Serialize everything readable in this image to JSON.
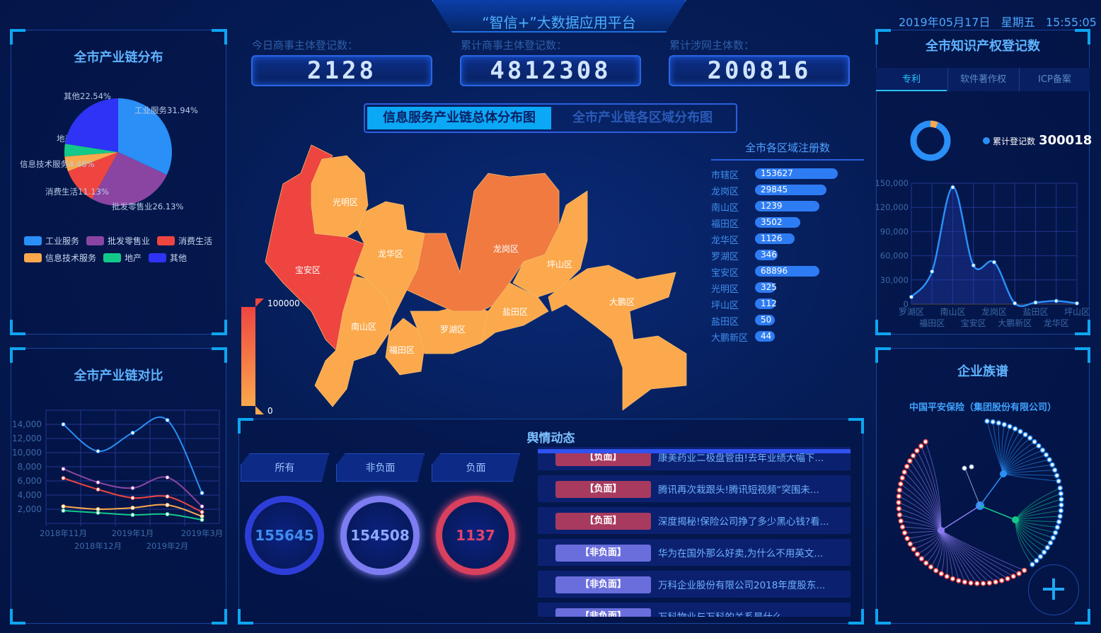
{
  "header": {
    "title": "“智信+”大数据应用平台",
    "date": "2019年05月17日",
    "weekday": "星期五",
    "time": "15:55:05"
  },
  "stats": [
    {
      "label": "今日商事主体登记数：",
      "value": "2128"
    },
    {
      "label": "累计商事主体登记数：",
      "value": "4812308"
    },
    {
      "label": "累计涉网主体数：",
      "value": "200816"
    }
  ],
  "map_tabs": [
    {
      "label": "信息服务产业链总体分布图",
      "active": true
    },
    {
      "label": "全市产业链各区域分布图",
      "active": false
    }
  ],
  "map": {
    "legend_max": "100000",
    "legend_min": "0",
    "districts": [
      "宝安区",
      "光明区",
      "龙华区",
      "南山区",
      "福田区",
      "罗湖区",
      "龙岗区",
      "盐田区",
      "坪山区",
      "大鹏区"
    ],
    "colors": {
      "high": "#ee4540",
      "mid": "#f07a40",
      "low": "#fba94c"
    }
  },
  "region_list": {
    "title": "全市各区域注册数",
    "items": [
      {
        "name": "市辖区",
        "value": "153627",
        "pct": 1.0
      },
      {
        "name": "龙岗区",
        "value": "29845",
        "pct": 0.86
      },
      {
        "name": "南山区",
        "value": "1239",
        "pct": 0.78
      },
      {
        "name": "福田区",
        "value": "3502",
        "pct": 0.55
      },
      {
        "name": "龙华区",
        "value": "1126",
        "pct": 0.48
      },
      {
        "name": "罗湖区",
        "value": "346",
        "pct": 0.27
      },
      {
        "name": "宝安区",
        "value": "68896",
        "pct": 0.78
      },
      {
        "name": "光明区",
        "value": "325",
        "pct": 0.25
      },
      {
        "name": "坪山区",
        "value": "112",
        "pct": 0.25
      },
      {
        "name": "盐田区",
        "value": "50",
        "pct": 0.2
      },
      {
        "name": "大鹏新区",
        "value": "44",
        "pct": 0.2
      }
    ]
  },
  "left_top": {
    "title": "全市产业链分布",
    "chart_data": {
      "type": "pie",
      "slices": [
        {
          "name": "工业服务",
          "value": 31.94,
          "label": "工业服务31.94%",
          "color": "#2a8ff7"
        },
        {
          "name": "批发零售业",
          "value": 26.13,
          "label": "批发零售业26.13%",
          "color": "#8a45a3"
        },
        {
          "name": "消费生活",
          "value": 11.13,
          "label": "消费生活11.13%",
          "color": "#ee4540"
        },
        {
          "name": "信息技术服务",
          "value": 4.46,
          "label": "信息技术服务4.46%",
          "color": "#fba94c"
        },
        {
          "name": "地产",
          "value": 3.8,
          "label": "地产3.8%",
          "color": "#13c98a"
        },
        {
          "name": "其他",
          "value": 22.54,
          "label": "其他22.54%",
          "color": "#2e33f5"
        }
      ],
      "legend": "bottom"
    }
  },
  "left_bottom": {
    "title": "全市产业链对比",
    "chart_data": {
      "type": "line",
      "categories": [
        "2018年11月",
        "2018年12月",
        "2019年1月",
        "2019年2月",
        "2019年3月"
      ],
      "ylim": [
        0,
        16000
      ],
      "yticks": [
        "2,000",
        "4,000",
        "6,000",
        "8,000",
        "10,000",
        "12,000",
        "14,000"
      ],
      "series": [
        {
          "name": "工业服务",
          "color": "#2a8ff7",
          "values": [
            14000,
            10200,
            12800,
            14600,
            4300
          ]
        },
        {
          "name": "批发零售业",
          "color": "#8a45a3",
          "values": [
            7700,
            5800,
            5000,
            6500,
            2400
          ]
        },
        {
          "name": "消费生活",
          "color": "#ee4540",
          "values": [
            6400,
            4800,
            3600,
            3800,
            1600
          ]
        },
        {
          "name": "信息技术服务",
          "color": "#fba94c",
          "values": [
            2400,
            2000,
            2200,
            2600,
            1000
          ]
        },
        {
          "name": "地产",
          "color": "#13c98a",
          "values": [
            1800,
            1500,
            1200,
            1300,
            500
          ]
        }
      ]
    }
  },
  "right_top": {
    "title": "全市知识产权登记数",
    "tabs": [
      {
        "label": "专利",
        "active": true
      },
      {
        "label": "软件著作权",
        "active": false
      },
      {
        "label": "ICP备案",
        "active": false
      }
    ],
    "total_label": "累计登记数",
    "total_value": "300018",
    "chart_data": {
      "type": "area",
      "categories": [
        "罗湖区",
        "福田区",
        "南山区",
        "宝安区",
        "龙岗区",
        "大鹏新区",
        "盐田区",
        "龙华区",
        "坪山区"
      ],
      "values": [
        8900,
        40500,
        145000,
        48000,
        52000,
        1000,
        2000,
        4000,
        1000
      ],
      "ylim": [
        0,
        150000
      ],
      "yticks": [
        "0",
        "30,000",
        "60,000",
        "90,000",
        "120,000",
        "150,000"
      ]
    }
  },
  "right_bottom": {
    "title": "企业族谱",
    "company": "中国平安保险（集团股份有限公司）"
  },
  "sentiment": {
    "title": "舆情动态",
    "buttons": [
      "所有",
      "非负面",
      "负面"
    ],
    "counts": [
      {
        "value": "155645",
        "color": "#2d3ed8"
      },
      {
        "value": "154508",
        "color": "#7d7cf0"
      },
      {
        "value": "1137",
        "color": "#d8405e"
      }
    ],
    "news": [
      {
        "tag": "【负面】",
        "title": "康美药业二极盘管由!去年业绩大幅下...",
        "negative": true
      },
      {
        "tag": "【负面】",
        "title": "腾讯再次栽跟头!腾讯短视频“突围未...",
        "negative": true
      },
      {
        "tag": "【负面】",
        "title": "深度揭秘!保险公司挣了多少黑心钱?看...",
        "negative": true
      },
      {
        "tag": "【非负面】",
        "title": "华为在国外那么好卖,为什么不用英文...",
        "negative": false
      },
      {
        "tag": "【非负面】",
        "title": "万科企业股份有限公司2018年度股东...",
        "negative": false
      },
      {
        "tag": "【非负面】",
        "title": "万科物业与万科的关系是什么",
        "negative": false
      }
    ]
  }
}
